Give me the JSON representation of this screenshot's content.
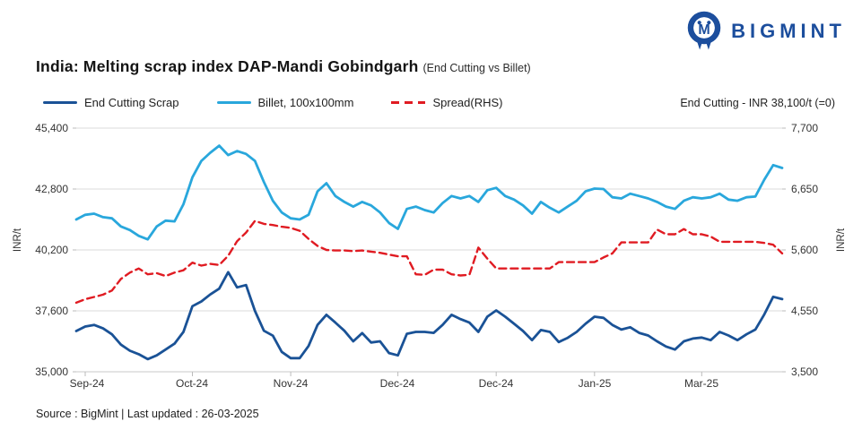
{
  "brand": {
    "wordmark": "BIGMINT"
  },
  "title": {
    "main": "India: Melting scrap index DAP-Mandi Gobindgarh",
    "sub": "(End Cutting vs Billet)"
  },
  "legend": {
    "items": [
      {
        "label": "End Cutting Scrap",
        "color": "#1A5296",
        "style": "solid"
      },
      {
        "label": "Billet, 100x100mm",
        "color": "#29A7DC",
        "style": "solid"
      },
      {
        "label": "Spread(RHS)",
        "color": "#E01B22",
        "style": "dashed"
      }
    ],
    "annotation": "End Cutting - INR 38,100/t (=0)"
  },
  "source": "Source : BigMint | Last updated : 26-03-2025",
  "chart_data": {
    "type": "line",
    "title": "India: Melting scrap index DAP-Mandi Gobindgarh (End Cutting vs Billet)",
    "grid": "horizontal",
    "legend_position": "top",
    "left_axis": {
      "label": "INR/t",
      "min": 35000,
      "max": 45400,
      "tick_labels": [
        "45,400",
        "42,800",
        "40,200",
        "37,600",
        "35,000"
      ]
    },
    "right_axis": {
      "label": "INR/t",
      "min": 3500,
      "max": 7700,
      "tick_labels": [
        "7,700",
        "6,650",
        "5,600",
        "4,550",
        "3,500"
      ]
    },
    "x_ticks": {
      "labels": [
        "Sep-24",
        "Oct-24",
        "Nov-24",
        "Dec-24",
        "Dec-24",
        "Jan-25",
        "Mar-25"
      ],
      "indices": [
        1,
        13,
        24,
        36,
        47,
        58,
        70
      ]
    },
    "series": [
      {
        "name": "Spread(RHS)",
        "axis": "right",
        "color": "#E01B22",
        "dash": true,
        "values": [
          4690,
          4750,
          4790,
          4830,
          4900,
          5100,
          5210,
          5280,
          5180,
          5200,
          5150,
          5210,
          5250,
          5380,
          5330,
          5360,
          5340,
          5500,
          5750,
          5900,
          6100,
          6050,
          6030,
          6000,
          5980,
          5930,
          5790,
          5670,
          5600,
          5590,
          5590,
          5580,
          5590,
          5570,
          5550,
          5520,
          5490,
          5490,
          5180,
          5170,
          5260,
          5260,
          5180,
          5160,
          5170,
          5640,
          5450,
          5280,
          5280,
          5280,
          5280,
          5280,
          5280,
          5280,
          5390,
          5390,
          5390,
          5390,
          5390,
          5470,
          5540,
          5730,
          5730,
          5730,
          5730,
          5950,
          5870,
          5870,
          5960,
          5870,
          5870,
          5830,
          5740,
          5740,
          5740,
          5740,
          5740,
          5720,
          5690,
          5540
        ]
      },
      {
        "name": "Billet, 100x100mm",
        "axis": "left",
        "color": "#29A7DC",
        "dash": false,
        "values": [
          41500,
          41700,
          41750,
          41600,
          41550,
          41200,
          41050,
          40800,
          40650,
          41200,
          41450,
          41420,
          42150,
          43300,
          44000,
          44350,
          44650,
          44250,
          44420,
          44300,
          44000,
          43100,
          42300,
          41800,
          41550,
          41500,
          41700,
          42700,
          43050,
          42500,
          42250,
          42050,
          42250,
          42100,
          41800,
          41350,
          41100,
          41950,
          42050,
          41900,
          41800,
          42200,
          42500,
          42400,
          42500,
          42250,
          42750,
          42850,
          42500,
          42350,
          42100,
          41750,
          42250,
          42000,
          41800,
          42050,
          42300,
          42700,
          42820,
          42800,
          42450,
          42400,
          42600,
          42500,
          42400,
          42250,
          42050,
          41950,
          42300,
          42450,
          42400,
          42450,
          42600,
          42350,
          42300,
          42450,
          42480,
          43200,
          43820,
          43700
        ]
      },
      {
        "name": "End Cutting Scrap",
        "axis": "left",
        "color": "#1A5296",
        "dash": false,
        "values": [
          36740,
          36930,
          37000,
          36850,
          36600,
          36160,
          35900,
          35750,
          35540,
          35700,
          35950,
          36200,
          36700,
          37800,
          38000,
          38300,
          38550,
          39250,
          38600,
          38700,
          37600,
          36750,
          36540,
          35850,
          35580,
          35580,
          36100,
          37000,
          37430,
          37100,
          36750,
          36300,
          36650,
          36250,
          36300,
          35800,
          35700,
          36620,
          36700,
          36700,
          36660,
          37000,
          37430,
          37250,
          37100,
          36700,
          37350,
          37620,
          37350,
          37050,
          36740,
          36350,
          36780,
          36700,
          36270,
          36450,
          36700,
          37050,
          37350,
          37300,
          37000,
          36800,
          36900,
          36660,
          36550,
          36300,
          36080,
          35950,
          36300,
          36420,
          36460,
          36350,
          36700,
          36550,
          36350,
          36600,
          36800,
          37450,
          38200,
          38100
        ]
      }
    ]
  }
}
